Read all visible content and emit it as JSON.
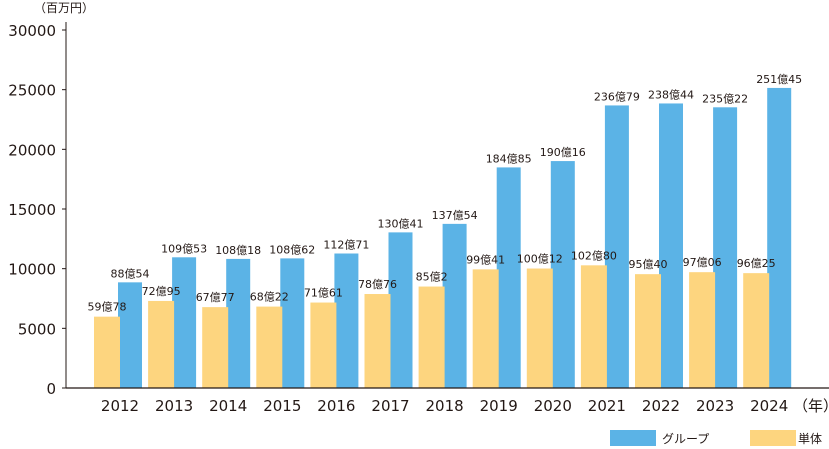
{
  "chart_data": {
    "type": "bar",
    "title": "",
    "y_unit_label": "（百万円）",
    "x_unit_label": "（年）",
    "ylim": [
      0,
      30000
    ],
    "yticks": [
      0,
      5000,
      10000,
      15000,
      20000,
      25000,
      30000
    ],
    "grid": false,
    "legend_position": "bottom-right",
    "categories": [
      "2012",
      "2013",
      "2014",
      "2015",
      "2016",
      "2017",
      "2018",
      "2019",
      "2020",
      "2021",
      "2022",
      "2023",
      "2024"
    ],
    "series": [
      {
        "name": "グループ",
        "color": "#5bb3e6",
        "values": [
          8854,
          10953,
          10818,
          10862,
          11271,
          13041,
          13754,
          18485,
          19016,
          23679,
          23844,
          23522,
          25145
        ],
        "labels": [
          "88億54",
          "109億53",
          "108億18",
          "108億62",
          "112億71",
          "130億41",
          "137億54",
          "184億85",
          "190億16",
          "236億79",
          "238億44",
          "235億22",
          "251億45"
        ]
      },
      {
        "name": "単体",
        "color": "#fdd57f",
        "values": [
          5978,
          7295,
          6777,
          6822,
          7161,
          7876,
          8502,
          9941,
          10012,
          10280,
          9540,
          9706,
          9625
        ],
        "labels": [
          "59億78",
          "72億95",
          "67億77",
          "68億22",
          "71億61",
          "78億76",
          "85億2",
          "99億41",
          "100億12",
          "102億80",
          "95億40",
          "97億06",
          "96億25"
        ]
      }
    ]
  }
}
